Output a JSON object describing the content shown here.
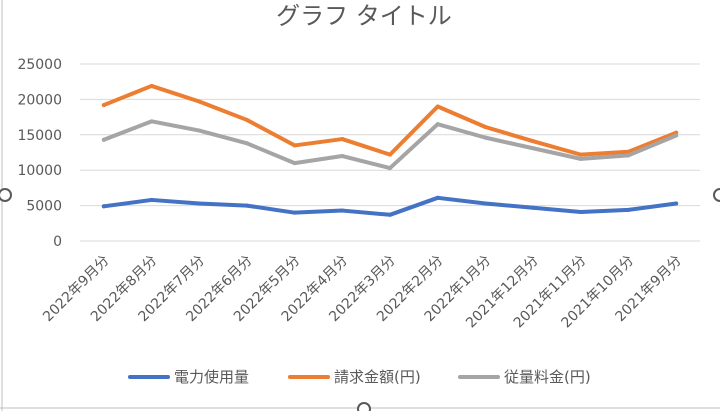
{
  "chart_data": {
    "type": "line",
    "title": "グラフ タイトル",
    "xlabel": "",
    "ylabel": "",
    "ylim": [
      0,
      25000
    ],
    "yticks": [
      0,
      5000,
      10000,
      15000,
      20000,
      25000
    ],
    "grid": true,
    "legend_position": "bottom",
    "categories": [
      "2022年9月分",
      "2022年8月分",
      "2022年7月分",
      "2022年6月分",
      "2022年5月分",
      "2022年4月分",
      "2022年3月分",
      "2022年2月分",
      "2022年1月分",
      "2021年12月分",
      "2021年11月分",
      "2021年10月分",
      "2021年9月分"
    ],
    "series": [
      {
        "name": "電力使用量",
        "color": "#4472C4",
        "values": [
          4900,
          5800,
          5300,
          5000,
          4000,
          4300,
          3700,
          6100,
          5300,
          4700,
          4100,
          4400,
          5300
        ]
      },
      {
        "name": "請求金額(円)",
        "color": "#ED7D31",
        "values": [
          19200,
          21900,
          19700,
          17100,
          13500,
          14400,
          12200,
          19000,
          16100,
          14100,
          12200,
          12600,
          15300
        ]
      },
      {
        "name": "従量料金(円)",
        "color": "#A5A5A5",
        "values": [
          14300,
          16900,
          15600,
          13800,
          11000,
          12000,
          10300,
          16500,
          14600,
          13100,
          11600,
          12100,
          14900
        ]
      }
    ]
  }
}
